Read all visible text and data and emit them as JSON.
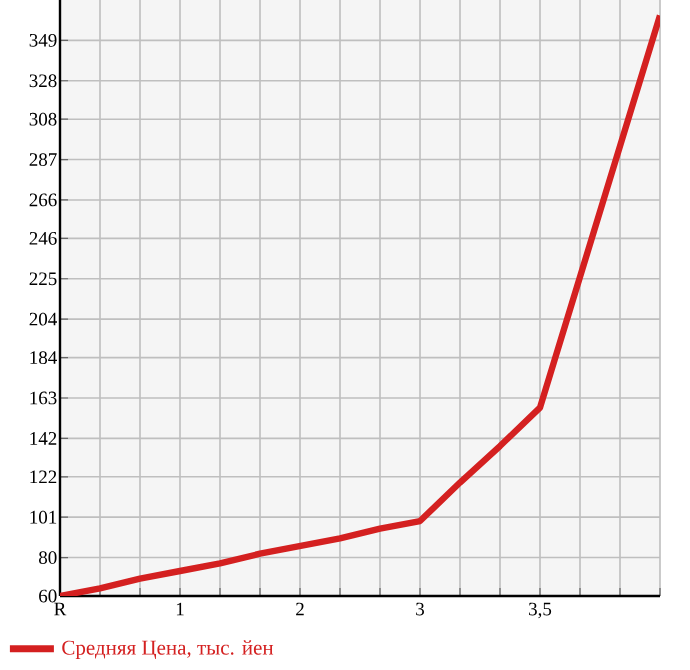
{
  "chart_data": {
    "type": "line",
    "categories": [
      "R",
      null,
      null,
      "1",
      null,
      null,
      "2",
      null,
      null,
      "3",
      null,
      null,
      "3,5",
      null,
      null,
      null
    ],
    "series": [
      {
        "name": "Средняя Цена, тыс. йен",
        "color": "#d42020",
        "values": [
          60,
          64,
          69,
          73,
          77,
          82,
          86,
          90,
          95,
          99,
          119,
          138,
          158,
          226,
          294,
          362
        ]
      }
    ],
    "ylim": [
      60,
      370
    ],
    "yticks": [
      60,
      80,
      101,
      122,
      142,
      163,
      184,
      204,
      225,
      246,
      266,
      287,
      308,
      328,
      349
    ],
    "grid": true,
    "legend": "bottom left",
    "marker": "none",
    "line_style": "solid"
  }
}
